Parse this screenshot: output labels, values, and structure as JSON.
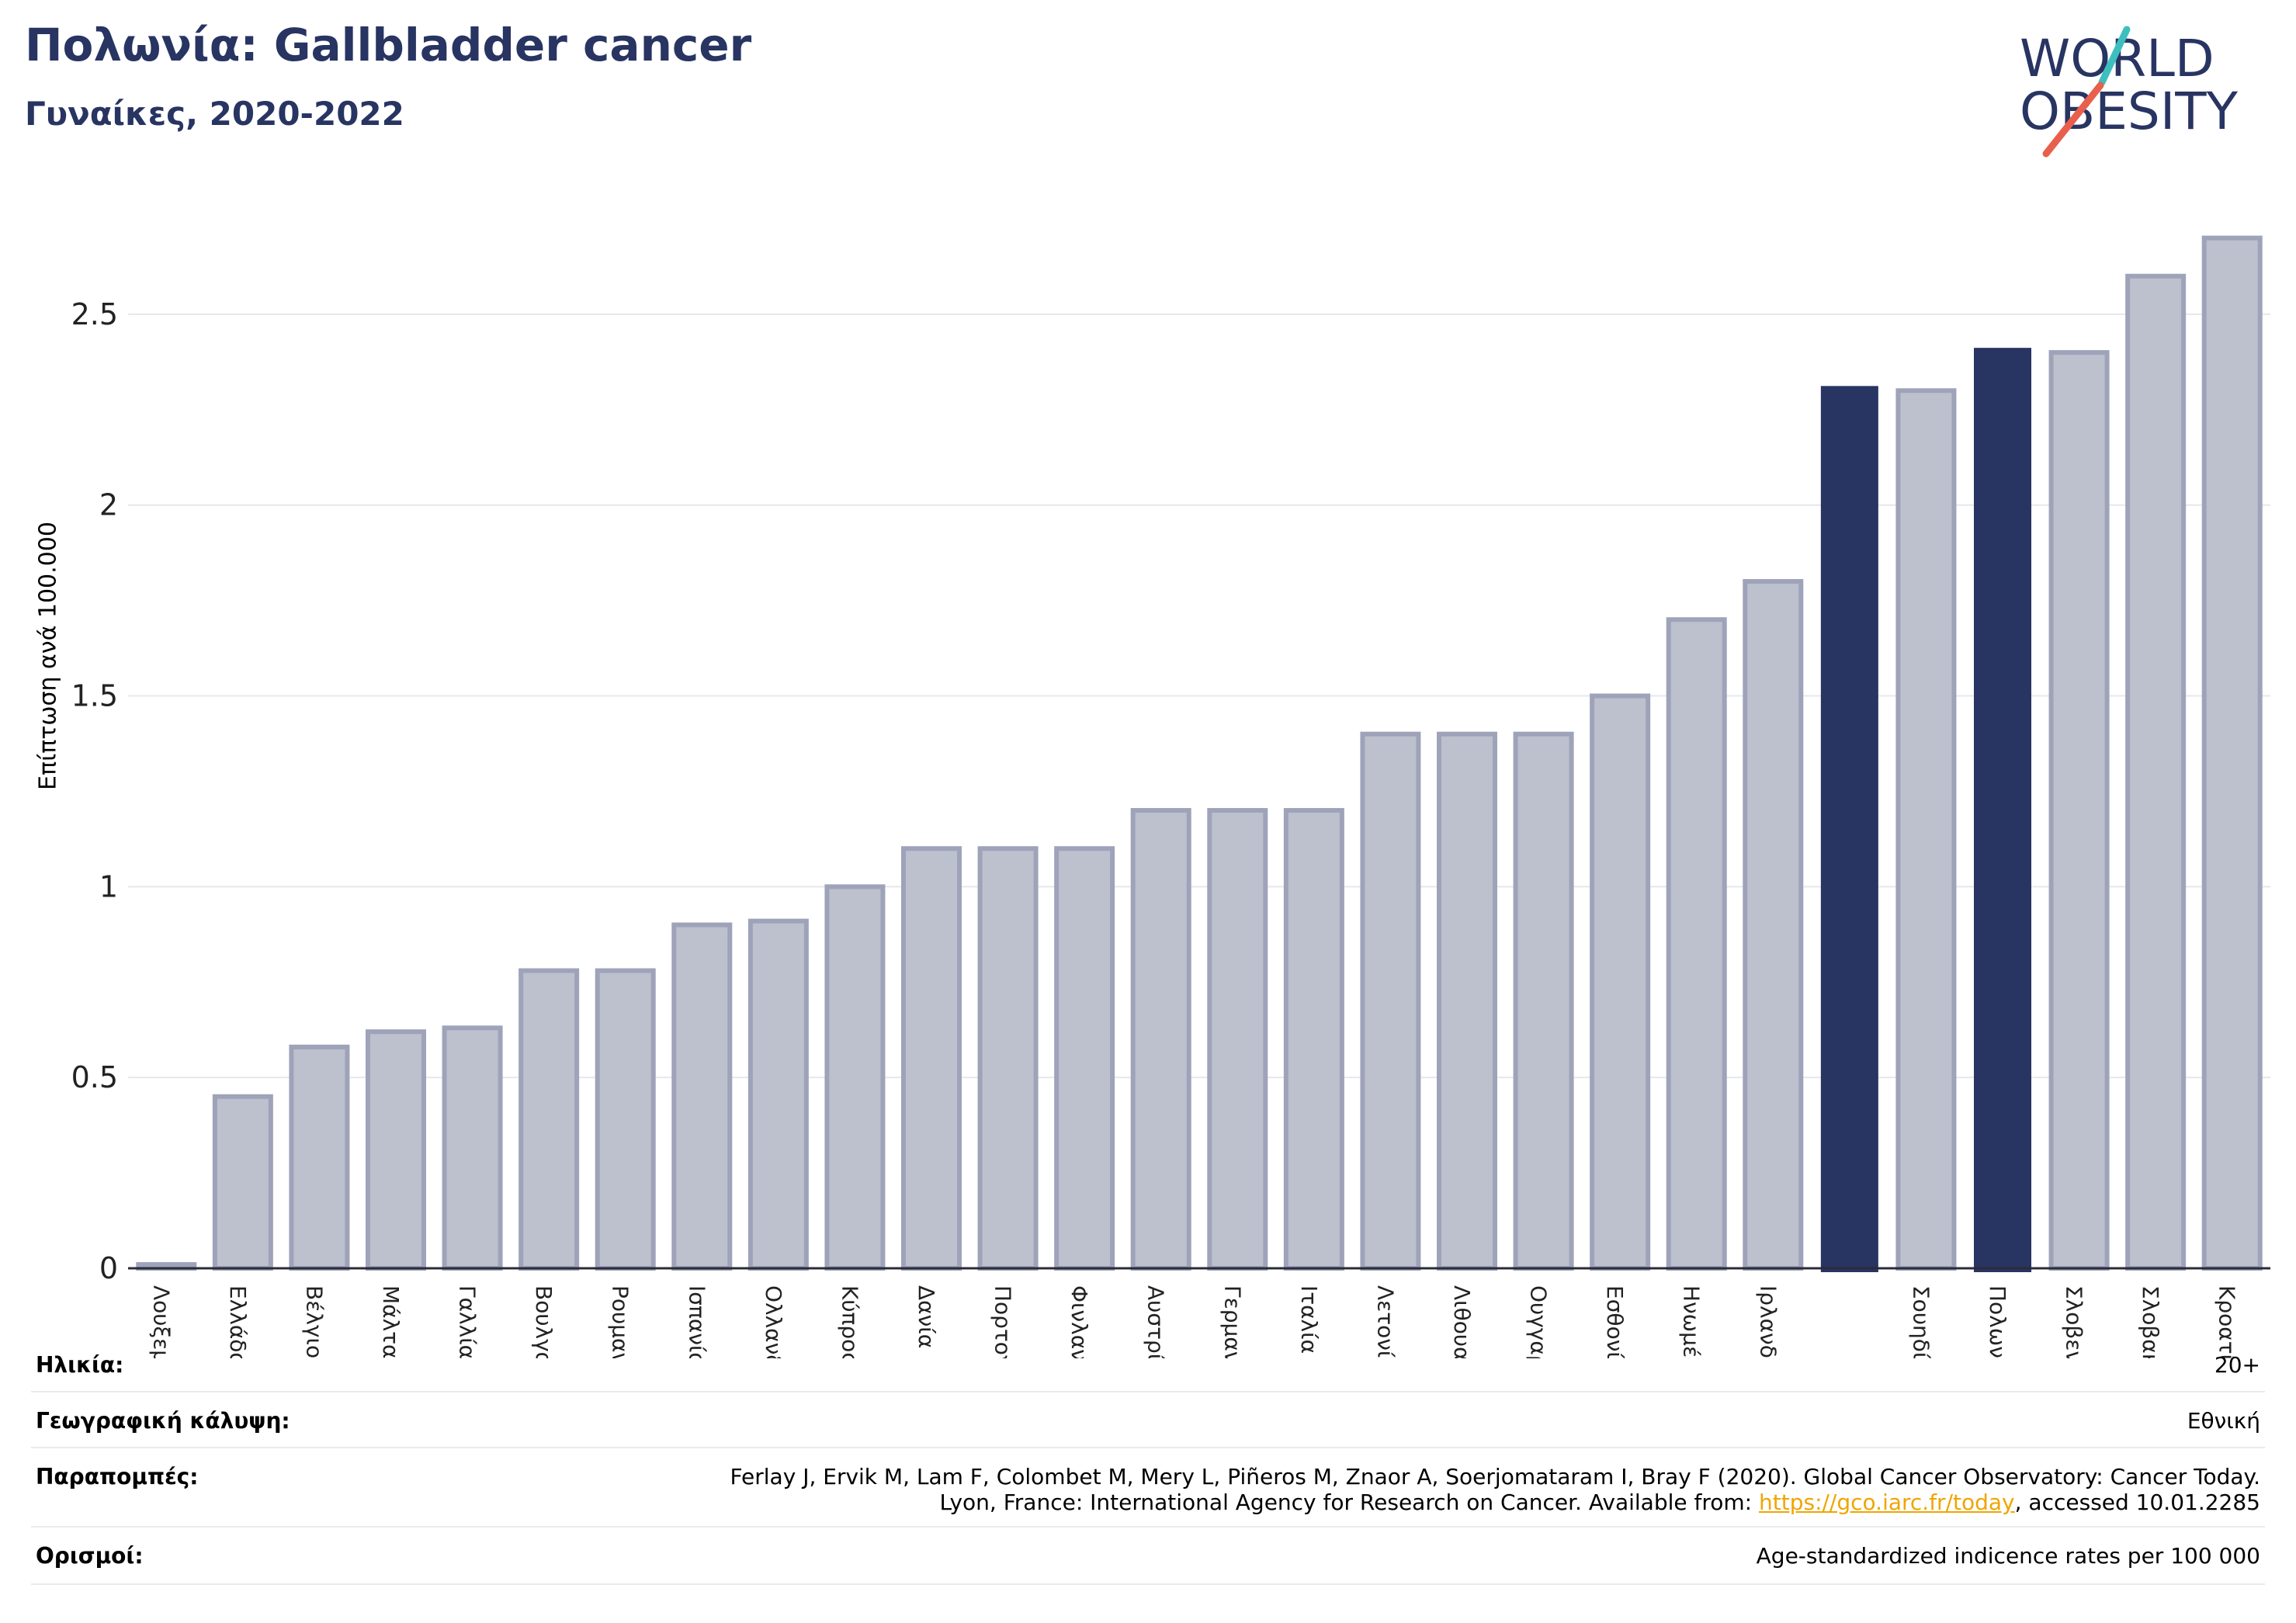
{
  "title": "Πολωνία: Gallbladder cancer",
  "subtitle": "Γυναίκες, 2020-2022",
  "logo": {
    "line1": "WORLD",
    "line2": "OBESITY"
  },
  "colors": {
    "highlight": "#283462",
    "bar": "#bdc0cd",
    "bar_border": "#9ea3b9",
    "title": "#283462",
    "slash_teal": "#3dbfbf",
    "slash_red": "#e8604c"
  },
  "chart_data": {
    "type": "bar",
    "ylabel": "Επίπτωση ανά 100.000",
    "yticks": [
      "0",
      "0.5",
      "1",
      "1.5",
      "2",
      "2.5"
    ],
    "ylim": [
      0,
      2.75
    ],
    "grid": true,
    "categories": [
      "Λουξεμβούργο",
      "Ελλάδα",
      "Βέλγιο",
      "Μάλτα",
      "Γαλλία",
      "Βουλγαρία",
      "Ρουμανία",
      "Ισπανία",
      "Ολλανδία",
      "Κύπρος",
      "Δανία",
      "Πορτογαλία",
      "Φινλανδία",
      "Αυστρία",
      "Γερμανία",
      "Ιταλία",
      "Λετονία",
      "Λιθουανία",
      "Ουγγαρία",
      "Εσθονία",
      "Ηνωμένο Βασίλειο",
      "Ιρλανδία",
      "",
      "Σουηδία",
      "Πολωνία",
      "Σλοβενία",
      "Σλοβακία",
      "Κροατία"
    ],
    "values": [
      0.01,
      0.45,
      0.58,
      0.62,
      0.63,
      0.78,
      0.78,
      0.9,
      0.91,
      1.0,
      1.1,
      1.1,
      1.1,
      1.2,
      1.2,
      1.2,
      1.4,
      1.4,
      1.4,
      1.5,
      1.7,
      1.8,
      2.31,
      2.3,
      2.41,
      2.4,
      2.6,
      2.7
    ],
    "highlighted": [
      false,
      false,
      false,
      false,
      false,
      false,
      false,
      false,
      false,
      false,
      false,
      false,
      false,
      false,
      false,
      false,
      false,
      false,
      false,
      false,
      false,
      false,
      true,
      false,
      true,
      false,
      false,
      false
    ]
  },
  "info": {
    "age_label": "Ηλικία:",
    "age_value": "20+",
    "coverage_label": "Γεωγραφική κάλυψη:",
    "coverage_value": "Εθνική",
    "refs_label": "Παραπομπές:",
    "refs_line1": "Ferlay J, Ervik M, Lam F, Colombet M, Mery L, Piñeros M, Znaor A, Soerjomataram I, Bray F (2020). Global Cancer Observatory: Cancer Today.",
    "refs_line2_pre": "Lyon, France: International Agency for Research on Cancer. Available from: ",
    "refs_link": "https://gco.iarc.fr/today",
    "refs_line2_post": ", accessed 10.01.2285",
    "defs_label": "Ορισμοί:",
    "defs_value": "Age-standardized indicence rates per 100 000"
  }
}
